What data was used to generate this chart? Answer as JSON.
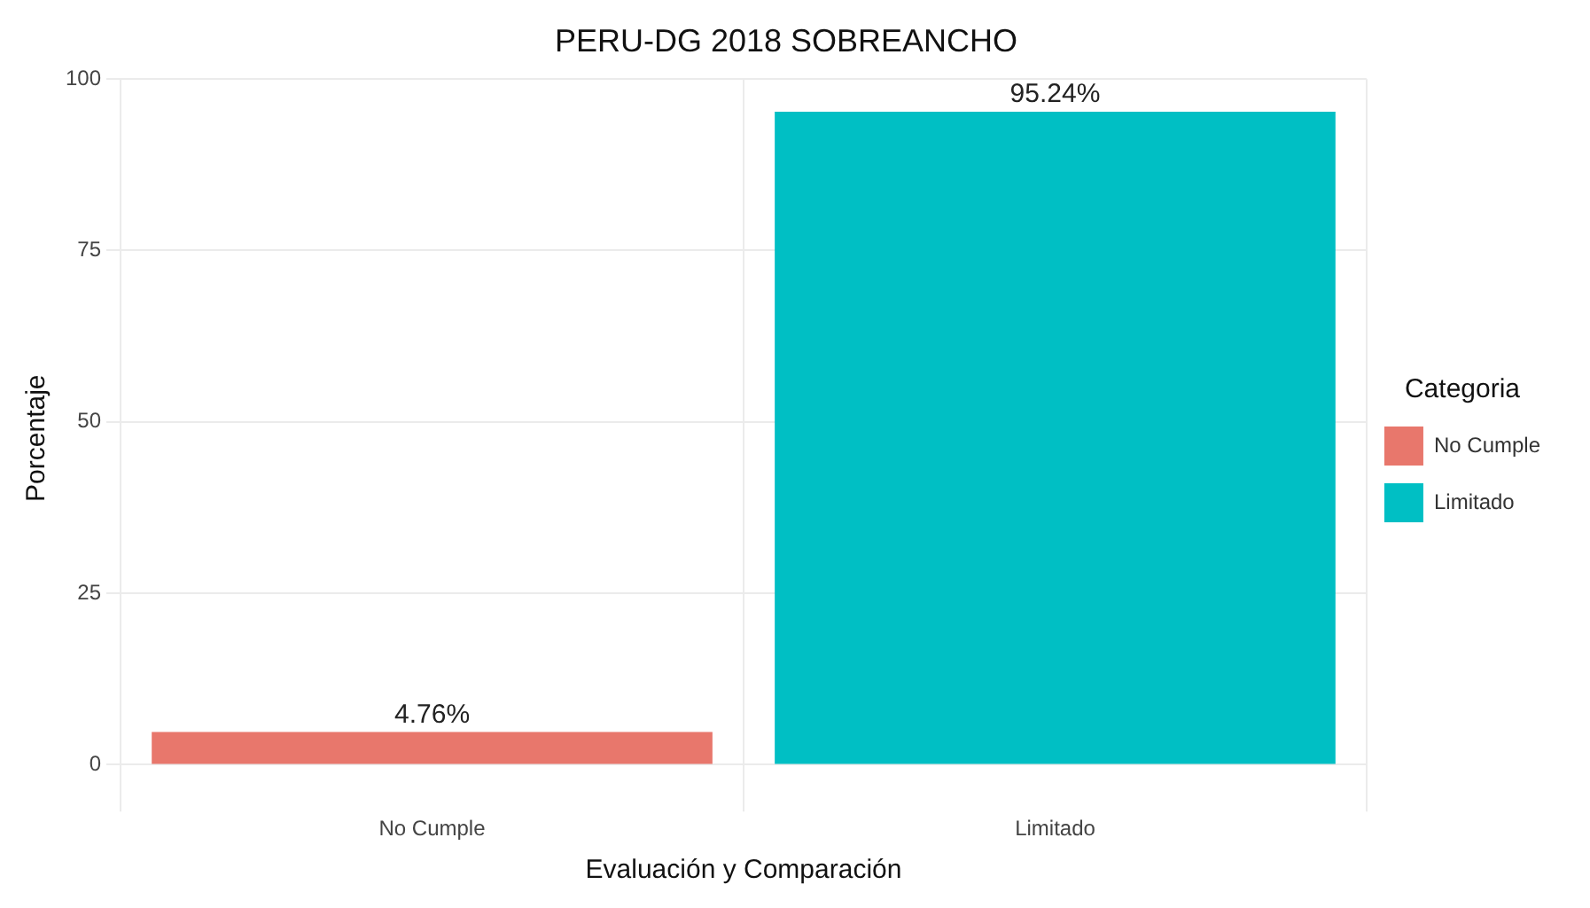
{
  "chart_data": {
    "type": "bar",
    "title": "PERU-DG 2018 SOBREANCHO",
    "xlabel": "Evaluación y Comparación",
    "ylabel": "Porcentaje",
    "legend_title": "Categoria",
    "categories": [
      "No Cumple",
      "Limitado"
    ],
    "series": [
      {
        "name": "No Cumple",
        "color": "#e8776c",
        "values": [
          4.76,
          null
        ],
        "value_labels": [
          "4.76%",
          null
        ]
      },
      {
        "name": "Limitado",
        "color": "#00bfc4",
        "values": [
          null,
          95.24
        ],
        "value_labels": [
          null,
          "95.24%"
        ]
      }
    ],
    "ylim": [
      -4.76,
      100
    ],
    "yticks": [
      0,
      25,
      50,
      75,
      100
    ],
    "grid": true,
    "legend": "right"
  }
}
